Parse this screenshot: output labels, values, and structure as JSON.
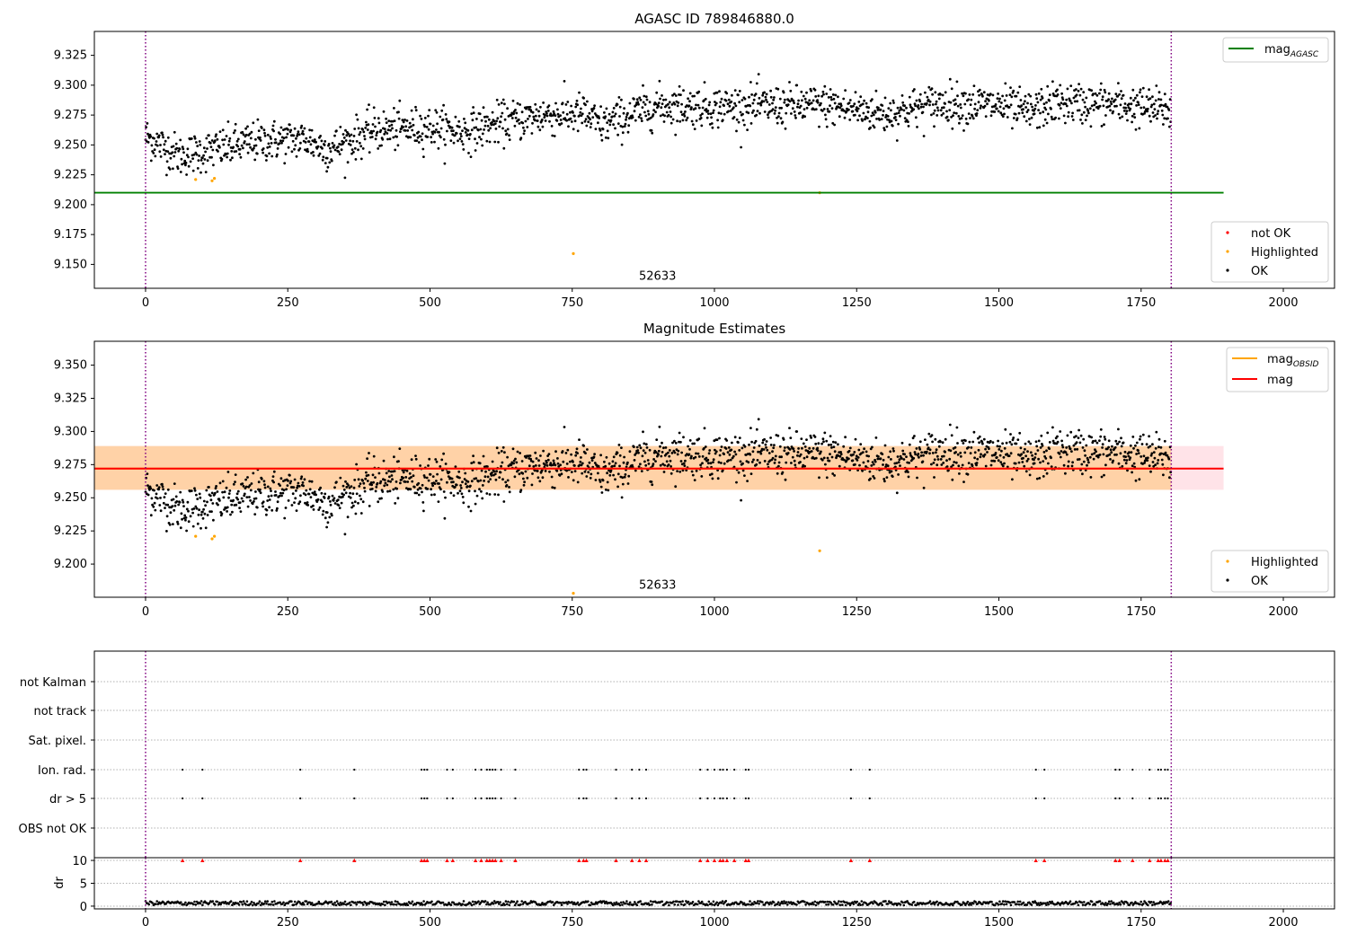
{
  "chart_data": [
    {
      "type": "scatter",
      "title": "AGASC ID 789846880.0",
      "xlim": [
        -90,
        2090
      ],
      "ylim": [
        9.13,
        9.345
      ],
      "x_ticks": [
        "0",
        "250",
        "500",
        "750",
        "1000",
        "1250",
        "1500",
        "1750",
        "2000"
      ],
      "y_ticks": [
        "9.150",
        "9.175",
        "9.200",
        "9.225",
        "9.250",
        "9.275",
        "9.300",
        "9.325"
      ],
      "vlines_dotted_purple": [
        0,
        1803
      ],
      "hline": {
        "name": "mag_AGASC",
        "y": 9.21,
        "x_range": [
          -90,
          1895
        ],
        "color": "#008000"
      },
      "annotation": {
        "text": "52633",
        "x": 900,
        "y": 9.14
      },
      "legends": [
        {
          "position": "top-right",
          "entries": [
            {
              "label": "mag",
              "sub": "AGASC",
              "color": "#008000",
              "kind": "line"
            }
          ]
        },
        {
          "position": "bottom-right",
          "entries": [
            {
              "label": "not OK",
              "color": "#ff0000",
              "kind": "dot"
            },
            {
              "label": "Highlighted",
              "color": "#ffa500",
              "kind": "dot"
            },
            {
              "label": "OK",
              "color": "#000000",
              "kind": "dot"
            }
          ]
        }
      ],
      "trend": [
        [
          0,
          9.257
        ],
        [
          60,
          9.241
        ],
        [
          120,
          9.246
        ],
        [
          200,
          9.253
        ],
        [
          280,
          9.255
        ],
        [
          320,
          9.246
        ],
        [
          400,
          9.262
        ],
        [
          500,
          9.265
        ],
        [
          560,
          9.261
        ],
        [
          620,
          9.268
        ],
        [
          700,
          9.275
        ],
        [
          770,
          9.276
        ],
        [
          800,
          9.266
        ],
        [
          850,
          9.275
        ],
        [
          900,
          9.283
        ],
        [
          1000,
          9.282
        ],
        [
          1200,
          9.283
        ],
        [
          1300,
          9.276
        ],
        [
          1400,
          9.285
        ],
        [
          1500,
          9.283
        ],
        [
          1550,
          9.277
        ],
        [
          1600,
          9.285
        ],
        [
          1700,
          9.284
        ],
        [
          1800,
          9.279
        ]
      ],
      "noise_std": 0.0085,
      "ok_count": 1800,
      "highlighted_points": [
        [
          88,
          9.221
        ],
        [
          117,
          9.22
        ],
        [
          121,
          9.222
        ],
        [
          752,
          9.159
        ],
        [
          1185,
          9.21
        ]
      ]
    },
    {
      "type": "scatter",
      "title": "Magnitude Estimates",
      "xlim": [
        -90,
        2090
      ],
      "ylim": [
        9.175,
        9.368
      ],
      "x_ticks": [
        "0",
        "250",
        "500",
        "750",
        "1000",
        "1250",
        "1500",
        "1750",
        "2000"
      ],
      "y_ticks": [
        "9.200",
        "9.225",
        "9.250",
        "9.275",
        "9.300",
        "9.325",
        "9.350"
      ],
      "vlines_dotted_purple": [
        0,
        1803
      ],
      "band": {
        "y_low": 9.256,
        "y_high": 9.289,
        "x_range": [
          -90,
          1895
        ],
        "color": "#ffc0cb"
      },
      "inner_band": {
        "y_low": 9.256,
        "y_high": 9.289,
        "x_range": [
          -90,
          1803
        ],
        "color": "#ffa500"
      },
      "lines": [
        {
          "name": "mag_OBSID",
          "y": 9.272,
          "x_range": [
            -90,
            1803
          ],
          "color": "#ffa500"
        },
        {
          "name": "mag",
          "y": 9.272,
          "x_range": [
            -90,
            1895
          ],
          "color": "#ff0000"
        }
      ],
      "annotation": {
        "text": "52633",
        "x": 900,
        "y": 9.184
      },
      "legends": [
        {
          "position": "top-right",
          "entries": [
            {
              "label": "mag",
              "sub": "OBSID",
              "color": "#ffa500",
              "kind": "line"
            },
            {
              "label": "mag",
              "sub": "",
              "color": "#ff0000",
              "kind": "line"
            }
          ]
        },
        {
          "position": "bottom-right",
          "entries": [
            {
              "label": "Highlighted",
              "color": "#ffa500",
              "kind": "dot"
            },
            {
              "label": "OK",
              "color": "#000000",
              "kind": "dot"
            }
          ]
        }
      ],
      "highlighted_points": [
        [
          88,
          9.221
        ],
        [
          117,
          9.219
        ],
        [
          121,
          9.221
        ],
        [
          752,
          9.178
        ],
        [
          1185,
          9.21
        ]
      ]
    },
    {
      "type": "scatter",
      "title": "",
      "xlim": [
        -90,
        2090
      ],
      "categories": [
        "OBS not OK",
        "dr > 5",
        "Ion. rad.",
        "Sat. pixel.",
        "not track",
        "not Kalman"
      ],
      "flag_events": [
        65,
        100,
        272,
        367,
        485,
        490,
        495,
        530,
        540,
        580,
        590,
        600,
        605,
        610,
        615,
        625,
        650,
        762,
        770,
        775,
        827,
        855,
        868,
        880,
        975,
        988,
        1000,
        1010,
        1015,
        1022,
        1035,
        1055,
        1060,
        1240,
        1273,
        1565,
        1580,
        1705,
        1712,
        1735,
        1765,
        1780,
        1785,
        1792,
        1797
      ],
      "flagged_rows": [
        "dr > 5",
        "Ion. rad."
      ]
    },
    {
      "type": "scatter",
      "title": "",
      "xlabel": "",
      "ylabel": "dr",
      "xlim": [
        -90,
        2090
      ],
      "ylim": [
        -0.6,
        10.6
      ],
      "x_ticks": [
        "0",
        "250",
        "500",
        "750",
        "1000",
        "1250",
        "1500",
        "1750",
        "2000"
      ],
      "y_ticks": [
        "0",
        "5",
        "10"
      ],
      "dr_typical": [
        0.2,
        1.1
      ],
      "clip_marker": {
        "y": 10,
        "color": "#ff0000",
        "shape": "triangle"
      }
    }
  ]
}
